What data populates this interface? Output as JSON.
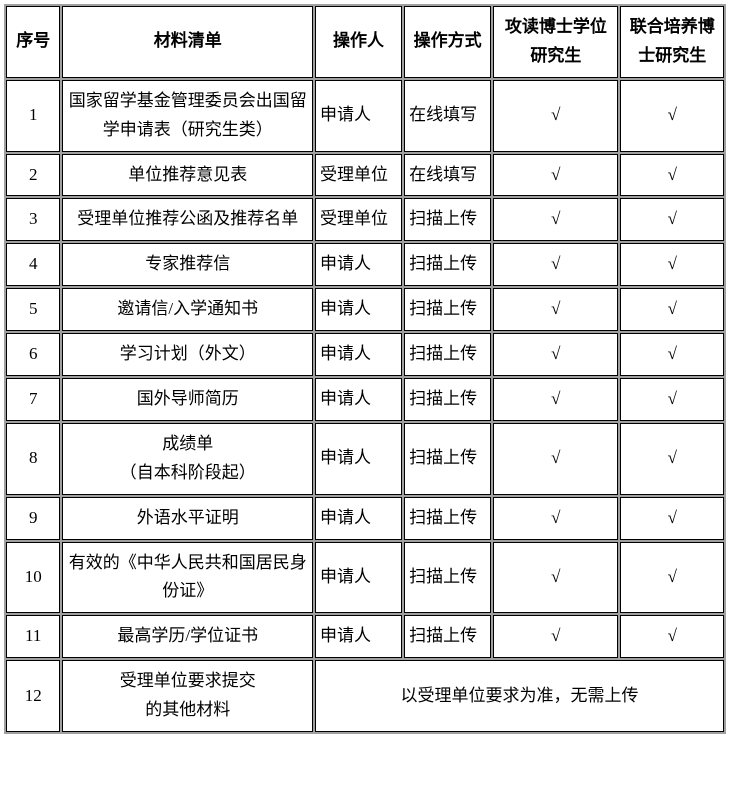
{
  "headers": {
    "idx": "序号",
    "list": "材料清单",
    "operator": "操作人",
    "method": "操作方式",
    "phd": "攻读博士学位研究生",
    "joint": "联合培养博士研究生"
  },
  "rows": [
    {
      "idx": "1",
      "list": "国家留学基金管理委员会出国留学申请表（研究生类）",
      "op": "申请人",
      "method": "在线填写",
      "phd": "√",
      "joint": "√"
    },
    {
      "idx": "2",
      "list": "单位推荐意见表",
      "op": "受理单位",
      "method": "在线填写",
      "phd": "√",
      "joint": "√"
    },
    {
      "idx": "3",
      "list": "受理单位推荐公函及推荐名单",
      "op": "受理单位",
      "method": "扫描上传",
      "phd": "√",
      "joint": "√"
    },
    {
      "idx": "4",
      "list": "专家推荐信",
      "op": "申请人",
      "method": "扫描上传",
      "phd": "√",
      "joint": "√"
    },
    {
      "idx": "5",
      "list": "邀请信/入学通知书",
      "op": "申请人",
      "method": "扫描上传",
      "phd": "√",
      "joint": "√"
    },
    {
      "idx": "6",
      "list": "学习计划（外文）",
      "op": "申请人",
      "method": "扫描上传",
      "phd": "√",
      "joint": "√"
    },
    {
      "idx": "7",
      "list": "国外导师简历",
      "op": "申请人",
      "method": "扫描上传",
      "phd": "√",
      "joint": "√"
    },
    {
      "idx": "8",
      "list": "成绩单\n（自本科阶段起）",
      "op": "申请人",
      "method": "扫描上传",
      "phd": "√",
      "joint": "√"
    },
    {
      "idx": "9",
      "list": "外语水平证明",
      "op": "申请人",
      "method": "扫描上传",
      "phd": "√",
      "joint": "√"
    },
    {
      "idx": "10",
      "list": "有效的《中华人民共和国居民身份证》",
      "op": "申请人",
      "method": "扫描上传",
      "phd": "√",
      "joint": "√"
    },
    {
      "idx": "11",
      "list": "最高学历/学位证书",
      "op": "申请人",
      "method": "扫描上传",
      "phd": "√",
      "joint": "√"
    }
  ],
  "lastRow": {
    "idx": "12",
    "list": "受理单位要求提交\n的其他材料",
    "merged": "以受理单位要求为准，无需上传"
  }
}
